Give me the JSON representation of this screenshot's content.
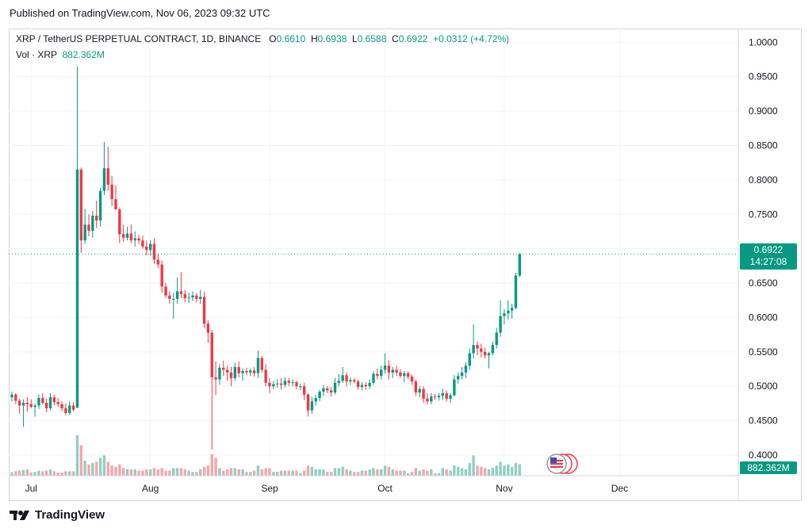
{
  "header": {
    "published": "Published on TradingView.com, Nov 06, 2023 09:32 UTC"
  },
  "legend": {
    "symbol": "XRP / TetherUS PERPETUAL CONTRACT, 1D, BINANCE",
    "o_label": "O",
    "o_value": "0.6610",
    "h_label": "H",
    "h_value": "0.6938",
    "l_label": "L",
    "l_value": "0.6588",
    "c_label": "C",
    "c_value": "0.6922",
    "change": "+0.0312 (+4.72%)",
    "vol_label": "Vol · XRP",
    "vol_value": "882.362M"
  },
  "price_tags": {
    "last_price": "0.6922",
    "countdown": "14:27:08",
    "volume": "882.362M"
  },
  "footer": {
    "brand": "TradingView"
  },
  "colors": {
    "up": "#089981",
    "down": "#f23645",
    "vol_up": "#8fd0c3",
    "vol_down": "#f5a6ac",
    "grid": "#f0f3fa"
  },
  "chart_data": {
    "type": "candlestick",
    "title": "XRP / TetherUS PERPETUAL CONTRACT, 1D, BINANCE",
    "y_axis": {
      "ticks": [
        "1.0000",
        "0.9500",
        "0.9000",
        "0.8500",
        "0.8000",
        "0.7500",
        "0.7000",
        "0.6500",
        "0.6000",
        "0.5500",
        "0.5000",
        "0.4500",
        "0.4000"
      ],
      "range": [
        0.37,
        1.02
      ]
    },
    "x_axis": {
      "ticks": [
        {
          "label": "Jul",
          "date": "2023-07-01"
        },
        {
          "label": "Aug",
          "date": "2023-08-01"
        },
        {
          "label": "Sep",
          "date": "2023-09-01"
        },
        {
          "label": "Oct",
          "date": "2023-10-01"
        },
        {
          "label": "Nov",
          "date": "2023-11-01"
        },
        {
          "label": "Dec",
          "date": "2023-12-01"
        }
      ],
      "range": [
        "2023-06-26",
        "2023-12-31"
      ]
    },
    "last_close": 0.6922,
    "candles": [
      [
        "2023-06-26",
        0.484,
        0.492,
        0.478,
        0.488,
        0.28
      ],
      [
        "2023-06-27",
        0.488,
        0.49,
        0.474,
        0.479,
        0.35
      ],
      [
        "2023-06-28",
        0.479,
        0.482,
        0.46,
        0.472,
        0.4
      ],
      [
        "2023-06-29",
        0.472,
        0.481,
        0.441,
        0.476,
        0.45
      ],
      [
        "2023-06-30",
        0.476,
        0.484,
        0.463,
        0.474,
        0.5
      ],
      [
        "2023-07-01",
        0.474,
        0.481,
        0.468,
        0.47,
        0.25
      ],
      [
        "2023-07-02",
        0.47,
        0.475,
        0.456,
        0.472,
        0.3
      ],
      [
        "2023-07-03",
        0.472,
        0.488,
        0.467,
        0.483,
        0.4
      ],
      [
        "2023-07-04",
        0.483,
        0.49,
        0.473,
        0.476,
        0.35
      ],
      [
        "2023-07-05",
        0.476,
        0.482,
        0.462,
        0.468,
        0.4
      ],
      [
        "2023-07-06",
        0.468,
        0.49,
        0.465,
        0.484,
        0.5
      ],
      [
        "2023-07-07",
        0.484,
        0.488,
        0.472,
        0.477,
        0.35
      ],
      [
        "2023-07-08",
        0.477,
        0.483,
        0.47,
        0.474,
        0.25
      ],
      [
        "2023-07-09",
        0.474,
        0.478,
        0.464,
        0.468,
        0.25
      ],
      [
        "2023-07-10",
        0.468,
        0.475,
        0.458,
        0.461,
        0.35
      ],
      [
        "2023-07-11",
        0.461,
        0.478,
        0.458,
        0.472,
        0.35
      ],
      [
        "2023-07-12",
        0.472,
        0.477,
        0.463,
        0.466,
        0.35
      ],
      [
        "2023-07-13",
        0.469,
        0.965,
        0.468,
        0.815,
        3.2
      ],
      [
        "2023-07-14",
        0.815,
        0.818,
        0.694,
        0.712,
        2.4
      ],
      [
        "2023-07-15",
        0.712,
        0.758,
        0.707,
        0.735,
        1.2
      ],
      [
        "2023-07-16",
        0.735,
        0.75,
        0.718,
        0.726,
        0.9
      ],
      [
        "2023-07-17",
        0.726,
        0.755,
        0.716,
        0.748,
        1.0
      ],
      [
        "2023-07-18",
        0.748,
        0.77,
        0.73,
        0.741,
        1.1
      ],
      [
        "2023-07-19",
        0.741,
        0.788,
        0.732,
        0.784,
        1.4
      ],
      [
        "2023-07-20",
        0.784,
        0.855,
        0.778,
        0.817,
        1.6
      ],
      [
        "2023-07-21",
        0.817,
        0.848,
        0.784,
        0.793,
        1.1
      ],
      [
        "2023-07-22",
        0.793,
        0.806,
        0.762,
        0.772,
        0.8
      ],
      [
        "2023-07-23",
        0.772,
        0.792,
        0.76,
        0.757,
        0.7
      ],
      [
        "2023-07-24",
        0.757,
        0.76,
        0.708,
        0.721,
        0.9
      ],
      [
        "2023-07-25",
        0.721,
        0.735,
        0.71,
        0.716,
        0.6
      ],
      [
        "2023-07-26",
        0.716,
        0.732,
        0.712,
        0.722,
        0.5
      ],
      [
        "2023-07-27",
        0.722,
        0.735,
        0.708,
        0.712,
        0.5
      ],
      [
        "2023-07-28",
        0.712,
        0.725,
        0.703,
        0.715,
        0.5
      ],
      [
        "2023-07-29",
        0.715,
        0.72,
        0.707,
        0.712,
        0.4
      ],
      [
        "2023-07-30",
        0.712,
        0.719,
        0.7,
        0.703,
        0.4
      ],
      [
        "2023-07-31",
        0.703,
        0.712,
        0.69,
        0.698,
        0.5
      ],
      [
        "2023-08-01",
        0.698,
        0.712,
        0.69,
        0.707,
        0.5
      ],
      [
        "2023-08-02",
        0.707,
        0.715,
        0.678,
        0.684,
        0.6
      ],
      [
        "2023-08-03",
        0.684,
        0.692,
        0.672,
        0.677,
        0.5
      ],
      [
        "2023-08-04",
        0.677,
        0.683,
        0.636,
        0.645,
        0.6
      ],
      [
        "2023-08-05",
        0.645,
        0.65,
        0.628,
        0.632,
        0.4
      ],
      [
        "2023-08-06",
        0.632,
        0.638,
        0.62,
        0.627,
        0.4
      ],
      [
        "2023-08-07",
        0.627,
        0.636,
        0.598,
        0.627,
        0.6
      ],
      [
        "2023-08-08",
        0.627,
        0.658,
        0.62,
        0.638,
        0.6
      ],
      [
        "2023-08-09",
        0.638,
        0.666,
        0.628,
        0.634,
        0.6
      ],
      [
        "2023-08-10",
        0.634,
        0.64,
        0.622,
        0.628,
        0.5
      ],
      [
        "2023-08-11",
        0.628,
        0.636,
        0.621,
        0.629,
        0.4
      ],
      [
        "2023-08-12",
        0.629,
        0.638,
        0.624,
        0.632,
        0.3
      ],
      [
        "2023-08-13",
        0.632,
        0.636,
        0.622,
        0.627,
        0.3
      ],
      [
        "2023-08-14",
        0.627,
        0.64,
        0.62,
        0.63,
        0.5
      ],
      [
        "2023-08-15",
        0.63,
        0.637,
        0.585,
        0.591,
        0.7
      ],
      [
        "2023-08-16",
        0.591,
        0.596,
        0.563,
        0.578,
        0.8
      ],
      [
        "2023-08-17",
        0.578,
        0.582,
        0.408,
        0.513,
        1.7
      ],
      [
        "2023-08-18",
        0.513,
        0.536,
        0.487,
        0.51,
        1.4
      ],
      [
        "2023-08-19",
        0.51,
        0.532,
        0.502,
        0.527,
        0.6
      ],
      [
        "2023-08-20",
        0.527,
        0.537,
        0.515,
        0.524,
        0.4
      ],
      [
        "2023-08-21",
        0.524,
        0.53,
        0.508,
        0.52,
        0.5
      ],
      [
        "2023-08-22",
        0.52,
        0.528,
        0.5,
        0.512,
        0.6
      ],
      [
        "2023-08-23",
        0.512,
        0.534,
        0.508,
        0.528,
        0.6
      ],
      [
        "2023-08-24",
        0.528,
        0.536,
        0.513,
        0.519,
        0.5
      ],
      [
        "2023-08-25",
        0.519,
        0.526,
        0.508,
        0.522,
        0.5
      ],
      [
        "2023-08-26",
        0.522,
        0.527,
        0.516,
        0.52,
        0.3
      ],
      [
        "2023-08-27",
        0.52,
        0.526,
        0.515,
        0.523,
        0.3
      ],
      [
        "2023-08-28",
        0.523,
        0.528,
        0.514,
        0.519,
        0.4
      ],
      [
        "2023-08-29",
        0.519,
        0.552,
        0.512,
        0.541,
        0.8
      ],
      [
        "2023-08-30",
        0.541,
        0.544,
        0.52,
        0.524,
        0.5
      ],
      [
        "2023-08-31",
        0.524,
        0.532,
        0.5,
        0.505,
        0.6
      ],
      [
        "2023-09-01",
        0.505,
        0.512,
        0.49,
        0.5,
        0.6
      ],
      [
        "2023-09-02",
        0.5,
        0.508,
        0.496,
        0.503,
        0.3
      ],
      [
        "2023-09-03",
        0.503,
        0.51,
        0.498,
        0.504,
        0.3
      ],
      [
        "2023-09-04",
        0.504,
        0.512,
        0.495,
        0.502,
        0.4
      ],
      [
        "2023-09-05",
        0.502,
        0.513,
        0.498,
        0.508,
        0.4
      ],
      [
        "2023-09-06",
        0.508,
        0.512,
        0.5,
        0.505,
        0.4
      ],
      [
        "2023-09-07",
        0.505,
        0.51,
        0.5,
        0.506,
        0.4
      ],
      [
        "2023-09-08",
        0.506,
        0.508,
        0.496,
        0.5,
        0.4
      ],
      [
        "2023-09-09",
        0.5,
        0.504,
        0.494,
        0.5,
        0.2
      ],
      [
        "2023-09-10",
        0.5,
        0.505,
        0.48,
        0.488,
        0.4
      ],
      [
        "2023-09-11",
        0.488,
        0.49,
        0.456,
        0.465,
        0.8
      ],
      [
        "2023-09-12",
        0.465,
        0.485,
        0.46,
        0.478,
        0.7
      ],
      [
        "2023-09-13",
        0.478,
        0.487,
        0.472,
        0.483,
        0.5
      ],
      [
        "2023-09-14",
        0.483,
        0.495,
        0.478,
        0.492,
        0.5
      ],
      [
        "2023-09-15",
        0.492,
        0.502,
        0.486,
        0.497,
        0.5
      ],
      [
        "2023-09-16",
        0.497,
        0.5,
        0.49,
        0.494,
        0.3
      ],
      [
        "2023-09-17",
        0.494,
        0.499,
        0.485,
        0.491,
        0.3
      ],
      [
        "2023-09-18",
        0.491,
        0.512,
        0.488,
        0.505,
        0.6
      ],
      [
        "2023-09-19",
        0.505,
        0.518,
        0.5,
        0.508,
        0.6
      ],
      [
        "2023-09-20",
        0.508,
        0.528,
        0.505,
        0.516,
        0.7
      ],
      [
        "2023-09-21",
        0.516,
        0.52,
        0.5,
        0.507,
        0.5
      ],
      [
        "2023-09-22",
        0.507,
        0.513,
        0.502,
        0.509,
        0.4
      ],
      [
        "2023-09-23",
        0.509,
        0.512,
        0.504,
        0.507,
        0.3
      ],
      [
        "2023-09-24",
        0.507,
        0.51,
        0.495,
        0.499,
        0.3
      ],
      [
        "2023-09-25",
        0.499,
        0.506,
        0.494,
        0.502,
        0.4
      ],
      [
        "2023-09-26",
        0.502,
        0.506,
        0.495,
        0.5,
        0.4
      ],
      [
        "2023-09-27",
        0.5,
        0.51,
        0.496,
        0.505,
        0.5
      ],
      [
        "2023-09-28",
        0.505,
        0.522,
        0.502,
        0.518,
        0.6
      ],
      [
        "2023-09-29",
        0.518,
        0.526,
        0.51,
        0.515,
        0.5
      ],
      [
        "2023-09-30",
        0.515,
        0.53,
        0.51,
        0.524,
        0.5
      ],
      [
        "2023-10-01",
        0.524,
        0.548,
        0.518,
        0.53,
        0.8
      ],
      [
        "2023-10-02",
        0.53,
        0.538,
        0.51,
        0.52,
        0.7
      ],
      [
        "2023-10-03",
        0.52,
        0.528,
        0.512,
        0.524,
        0.5
      ],
      [
        "2023-10-04",
        0.524,
        0.53,
        0.515,
        0.52,
        0.4
      ],
      [
        "2023-10-05",
        0.52,
        0.525,
        0.512,
        0.515,
        0.4
      ],
      [
        "2023-10-06",
        0.515,
        0.522,
        0.506,
        0.519,
        0.4
      ],
      [
        "2023-10-07",
        0.519,
        0.522,
        0.51,
        0.514,
        0.2
      ],
      [
        "2023-10-08",
        0.514,
        0.517,
        0.502,
        0.507,
        0.3
      ],
      [
        "2023-10-09",
        0.507,
        0.51,
        0.486,
        0.491,
        0.6
      ],
      [
        "2023-10-10",
        0.491,
        0.5,
        0.484,
        0.496,
        0.4
      ],
      [
        "2023-10-11",
        0.496,
        0.5,
        0.476,
        0.482,
        0.5
      ],
      [
        "2023-10-12",
        0.482,
        0.49,
        0.474,
        0.478,
        0.4
      ],
      [
        "2023-10-13",
        0.478,
        0.49,
        0.474,
        0.485,
        0.5
      ],
      [
        "2023-10-14",
        0.485,
        0.489,
        0.48,
        0.484,
        0.2
      ],
      [
        "2023-10-15",
        0.484,
        0.49,
        0.479,
        0.486,
        0.2
      ],
      [
        "2023-10-16",
        0.486,
        0.496,
        0.48,
        0.49,
        0.6
      ],
      [
        "2023-10-17",
        0.49,
        0.494,
        0.478,
        0.482,
        0.5
      ],
      [
        "2023-10-18",
        0.482,
        0.49,
        0.476,
        0.487,
        0.4
      ],
      [
        "2023-10-19",
        0.487,
        0.516,
        0.485,
        0.51,
        0.8
      ],
      [
        "2023-10-20",
        0.51,
        0.52,
        0.504,
        0.515,
        0.7
      ],
      [
        "2023-10-21",
        0.515,
        0.528,
        0.51,
        0.52,
        0.6
      ],
      [
        "2023-10-22",
        0.52,
        0.535,
        0.512,
        0.53,
        0.5
      ],
      [
        "2023-10-23",
        0.53,
        0.555,
        0.524,
        0.548,
        1.0
      ],
      [
        "2023-10-24",
        0.548,
        0.59,
        0.54,
        0.56,
        1.6
      ],
      [
        "2023-10-25",
        0.56,
        0.565,
        0.545,
        0.555,
        0.8
      ],
      [
        "2023-10-26",
        0.555,
        0.562,
        0.542,
        0.55,
        0.7
      ],
      [
        "2023-10-27",
        0.55,
        0.556,
        0.54,
        0.545,
        0.6
      ],
      [
        "2023-10-28",
        0.545,
        0.55,
        0.526,
        0.548,
        0.5
      ],
      [
        "2023-10-29",
        0.548,
        0.565,
        0.545,
        0.56,
        0.6
      ],
      [
        "2023-10-30",
        0.56,
        0.585,
        0.555,
        0.578,
        0.8
      ],
      [
        "2023-10-31",
        0.578,
        0.625,
        0.572,
        0.602,
        1.1
      ],
      [
        "2023-11-01",
        0.602,
        0.612,
        0.59,
        0.606,
        0.8
      ],
      [
        "2023-11-02",
        0.606,
        0.625,
        0.597,
        0.61,
        0.9
      ],
      [
        "2023-11-03",
        0.61,
        0.62,
        0.598,
        0.614,
        0.7
      ],
      [
        "2023-11-04",
        0.614,
        0.665,
        0.612,
        0.661,
        1.0
      ],
      [
        "2023-11-05",
        0.661,
        0.6938,
        0.6588,
        0.6922,
        0.9
      ]
    ]
  }
}
